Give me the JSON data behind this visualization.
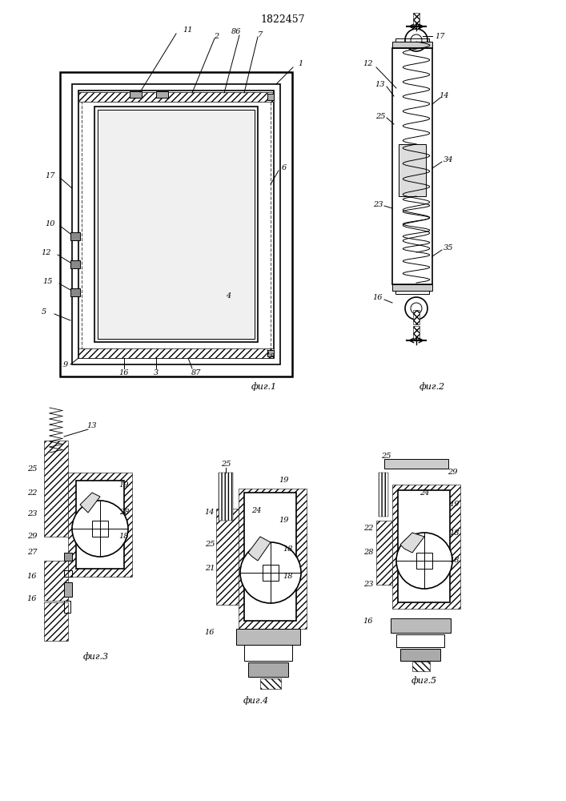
{
  "title": "1822457",
  "bg_color": "#ffffff",
  "line_color": "#000000",
  "hatch_color": "#000000",
  "fig1_label": "фиг.1",
  "fig2_label": "фиг.2",
  "fig3_label": "фиг.3",
  "fig4_label": "фиг.4",
  "fig5_label": "фиг.5"
}
